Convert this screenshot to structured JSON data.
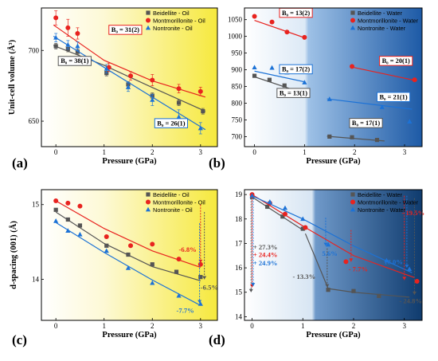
{
  "colors": {
    "beidellite": "#555555",
    "montmorillonite": "#e8231f",
    "nontronite": "#1c72d6"
  },
  "chart_data": [
    {
      "id": "a",
      "type": "scatter",
      "panel_label": "(a)",
      "xlabel": "Pressure (GPa)",
      "ylabel": "Unit-cell volume (Å³)",
      "xlim": [
        -0.3,
        3.35
      ],
      "ylim": [
        632,
        730
      ],
      "xticks": [
        0,
        1,
        2,
        3
      ],
      "yticks": [
        650,
        700
      ],
      "background": "yellow-gradient",
      "legend": "top-right",
      "series": [
        {
          "name": "Beidellite - Oil",
          "color": "beidellite",
          "marker": "square",
          "x": [
            0,
            0.25,
            0.45,
            1.05,
            1.5,
            2.0,
            2.55,
            3.05
          ],
          "y": [
            703,
            701,
            699,
            684,
            676,
            668,
            663,
            657
          ],
          "err": [
            2,
            2,
            2,
            2,
            2,
            2,
            2,
            2
          ],
          "fit": [
            [
              -0.05,
              703.5
            ],
            [
              1,
              689.5
            ],
            [
              2,
              673.8
            ],
            [
              3.1,
              657
            ]
          ]
        },
        {
          "name": "Montmorillonite - Oil",
          "color": "montmorillonite",
          "marker": "circle",
          "x": [
            0,
            0.25,
            0.45,
            1.1,
            1.55,
            2.0,
            2.55,
            3.0
          ],
          "y": [
            723,
            716,
            712,
            688,
            682,
            679,
            673,
            671
          ],
          "err": [
            5,
            6,
            4,
            3,
            3,
            4,
            3,
            3
          ],
          "fit": [
            [
              -0.05,
              718
            ],
            [
              1,
              693
            ],
            [
              2,
              678.5
            ],
            [
              3.1,
              667
            ]
          ]
        },
        {
          "name": "Nontronite - Oil",
          "color": "nontronite",
          "marker": "triangle",
          "x": [
            0,
            0.25,
            0.45,
            1.05,
            1.5,
            2.0,
            2.55,
            3.0
          ],
          "y": [
            709,
            704,
            703,
            687,
            674,
            665,
            653,
            645
          ],
          "err": [
            3,
            3,
            3,
            3,
            3,
            4,
            5,
            4
          ],
          "fit": [
            [
              -0.05,
              710
            ],
            [
              1,
              688
            ],
            [
              2,
              667
            ],
            [
              3.1,
              644
            ]
          ]
        }
      ],
      "annotations": [
        {
          "text": "B₀ = 31(2)",
          "series": "montmorillonite",
          "x": 1.1,
          "y": 713
        },
        {
          "text": "B₀ = 38(1)",
          "series": "beidellite",
          "x": 0.05,
          "y": 691
        },
        {
          "text": "B₀ = 26(1)",
          "series": "nontronite",
          "x": 2.05,
          "y": 647
        }
      ]
    },
    {
      "id": "b",
      "type": "scatter",
      "panel_label": "(b)",
      "xlabel": "Pressure (GPa)",
      "ylabel": "",
      "xlim": [
        -0.2,
        3.35
      ],
      "ylim": [
        670,
        1085
      ],
      "xticks": [
        0,
        1,
        2,
        3
      ],
      "yticks": [
        700,
        750,
        800,
        850,
        900,
        950,
        1000,
        1050
      ],
      "background": "blue-gradient",
      "legend": "top-right",
      "series": [
        {
          "name": "Beidellite - Water",
          "color": "beidellite",
          "marker": "square",
          "x": [
            0,
            0.3,
            0.6,
            1.0,
            1.5,
            1.95,
            2.45
          ],
          "y": [
            882,
            870,
            853,
            826,
            700,
            698,
            690
          ],
          "fit": [
            [
              0,
              879
            ],
            [
              1,
              829
            ]
          ],
          "fit2": [
            [
              1.45,
              701
            ],
            [
              2.6,
              687
            ]
          ]
        },
        {
          "name": "Montmorillonite - Water",
          "color": "montmorillonite",
          "marker": "circle",
          "x": [
            0,
            0.35,
            0.65,
            1.0,
            1.95,
            3.2
          ],
          "y": [
            1060,
            1043,
            1013,
            997,
            910,
            870
          ],
          "fit": [
            [
              0,
              1048
            ],
            [
              1,
              996
            ]
          ],
          "fit2": [
            [
              1.95,
              908
            ],
            [
              3.25,
              867
            ]
          ]
        },
        {
          "name": "Nontronite - Water",
          "color": "nontronite",
          "marker": "triangle",
          "x": [
            0,
            0.35,
            0.65,
            1.0,
            1.5,
            2.55,
            3.1
          ],
          "y": [
            907,
            906,
            892,
            862,
            812,
            788,
            745
          ],
          "fit": [
            [
              0,
              896
            ],
            [
              1,
              864
            ]
          ],
          "fit2": [
            [
              1.45,
              813
            ],
            [
              3.15,
              782
            ]
          ]
        }
      ],
      "annotations": [
        {
          "text": "B₀ = 13(2)",
          "series": "montmorillonite",
          "x": 0.5,
          "y": 1064
        },
        {
          "text": "B₀ = 17(2)",
          "series": "nontronite",
          "x": 0.5,
          "y": 895
        },
        {
          "text": "B₀ = 13(1)",
          "series": "beidellite",
          "x": 0.45,
          "y": 824
        },
        {
          "text": "B₀ = 20(1)",
          "series": "montmorillonite",
          "x": 2.5,
          "y": 920
        },
        {
          "text": "B₀ = 21(1)",
          "series": "nontronite",
          "x": 2.45,
          "y": 812
        },
        {
          "text": "B₀ = 17(1)",
          "series": "beidellite",
          "x": 1.9,
          "y": 734
        }
      ]
    },
    {
      "id": "c",
      "type": "scatter",
      "panel_label": "(c)",
      "xlabel": "Pressure (GPa)",
      "ylabel": "d-spacing (001) (Å)",
      "xlim": [
        -0.3,
        3.35
      ],
      "ylim": [
        13.45,
        15.2
      ],
      "xticks": [
        0,
        1,
        2,
        3
      ],
      "yticks": [
        14,
        15
      ],
      "background": "yellow-gradient",
      "legend": "top-right",
      "series": [
        {
          "name": "Beidellite - Oil",
          "color": "beidellite",
          "marker": "square",
          "x": [
            0,
            0.25,
            0.5,
            1.05,
            1.5,
            2.0,
            2.5,
            3.0
          ],
          "y": [
            14.93,
            14.8,
            14.72,
            14.45,
            14.33,
            14.2,
            14.1,
            14.03
          ],
          "fit": [
            [
              0,
              14.9
            ],
            [
              1,
              14.48
            ],
            [
              2,
              14.17
            ],
            [
              3,
              13.98
            ]
          ]
        },
        {
          "name": "Montmorillonite - Oil",
          "color": "montmorillonite",
          "marker": "circle",
          "x": [
            0,
            0.25,
            0.5,
            1.05,
            1.55,
            2.0,
            2.55,
            3.0
          ],
          "y": [
            15.05,
            15.02,
            14.98,
            14.57,
            14.45,
            14.47,
            14.27,
            14.2
          ],
          "fit": [
            [
              0,
              15.05
            ],
            [
              1,
              14.68
            ],
            [
              2,
              14.38
            ],
            [
              3,
              14.16
            ]
          ]
        },
        {
          "name": "Nontronite - Oil",
          "color": "nontronite",
          "marker": "triangle",
          "x": [
            0,
            0.25,
            0.5,
            1.05,
            1.5,
            2.0,
            2.55,
            3.0
          ],
          "y": [
            14.78,
            14.65,
            14.6,
            14.38,
            14.15,
            13.95,
            13.78,
            13.67
          ],
          "fit": [
            [
              0,
              14.76
            ],
            [
              1,
              14.36
            ],
            [
              2,
              13.99
            ],
            [
              3,
              13.65
            ]
          ]
        }
      ],
      "annotations": [
        {
          "text": "-6.8%",
          "series": "montmorillonite",
          "x": 2.55,
          "y": 14.37
        },
        {
          "text": "-6.5%",
          "series": "beidellite",
          "x": 3.0,
          "y": 13.86
        },
        {
          "text": "-7.7%",
          "series": "nontronite",
          "x": 2.5,
          "y": 13.55
        }
      ]
    },
    {
      "id": "d",
      "type": "scatter",
      "panel_label": "(d)",
      "xlabel": "Pressure (GPa)",
      "ylabel": "",
      "xlim": [
        -0.15,
        3.35
      ],
      "ylim": [
        13.85,
        19.2
      ],
      "xticks": [
        0,
        1,
        2,
        3
      ],
      "yticks": [
        14,
        15,
        16,
        17,
        18,
        19
      ],
      "background": "blue-gradient",
      "legend": "top-right",
      "series": [
        {
          "name": "Beidellite - Water",
          "color": "beidellite",
          "marker": "square",
          "x": [
            0,
            0.3,
            0.6,
            1.0,
            1.5,
            2.0,
            2.5
          ],
          "y": [
            18.9,
            18.5,
            18.1,
            17.6,
            15.1,
            15.05,
            14.85
          ],
          "fit": [
            [
              0,
              18.9
            ],
            [
              1,
              17.55
            ]
          ],
          "fit2": [
            [
              1.05,
              17.4
            ],
            [
              1.5,
              15.15
            ],
            [
              2,
              15.0
            ],
            [
              3.1,
              14.8
            ]
          ]
        },
        {
          "name": "Montmorillonite - Water",
          "color": "montmorillonite",
          "marker": "circle",
          "x": [
            0,
            0.35,
            0.65,
            1.05,
            1.85,
            3.25
          ],
          "y": [
            19.0,
            18.65,
            18.2,
            17.65,
            16.25,
            15.45
          ],
          "fit": [
            [
              0,
              19.0
            ],
            [
              1.05,
              17.65
            ],
            [
              2,
              16.5
            ],
            [
              3.2,
              15.6
            ]
          ]
        },
        {
          "name": "Nontronite - Water",
          "color": "nontronite",
          "marker": "triangle",
          "x": [
            0,
            0.35,
            0.65,
            1.0,
            1.5,
            2.65,
            3.1
          ],
          "y": [
            18.95,
            18.7,
            18.45,
            18.0,
            16.95,
            16.3,
            15.95
          ],
          "fit": [
            [
              0,
              18.95
            ],
            [
              1,
              18.0
            ],
            [
              2,
              16.9
            ],
            [
              3.15,
              15.8
            ]
          ]
        }
      ],
      "annotations": [
        {
          "text": "+ 27.3%",
          "series": "beidellite",
          "x": 0.02,
          "y": 16.75
        },
        {
          "text": "+ 24.4%",
          "series": "montmorillonite",
          "x": 0.02,
          "y": 16.45
        },
        {
          "text": "+ 24.9%",
          "series": "nontronite",
          "x": 0.02,
          "y": 16.1
        },
        {
          "text": "- 13.3%",
          "series": "beidellite",
          "x": 0.8,
          "y": 15.55
        },
        {
          "text": "5.6%",
          "series": "nontronite",
          "x": 1.38,
          "y": 16.5
        },
        {
          "text": "- 7.7%",
          "series": "montmorillonite",
          "x": 1.9,
          "y": 15.85
        },
        {
          "text": "- 19.5%",
          "series": "montmorillonite",
          "x": 2.95,
          "y": 18.15
        },
        {
          "text": "18.0%",
          "series": "nontronite",
          "x": 2.6,
          "y": 16.15
        },
        {
          "text": "- 24.8%",
          "series": "beidellite",
          "x": 2.9,
          "y": 14.55
        }
      ]
    }
  ]
}
